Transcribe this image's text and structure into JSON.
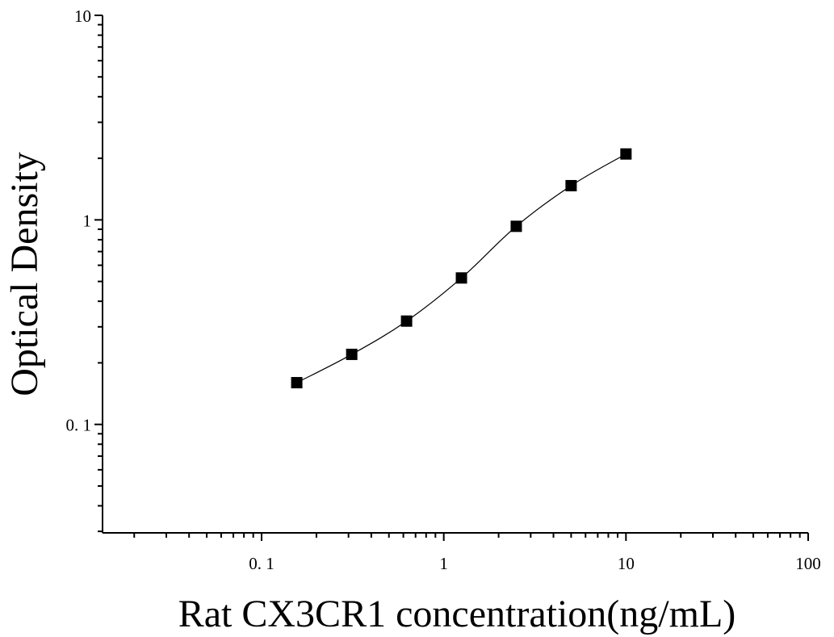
{
  "chart_data": {
    "type": "scatter",
    "title": "",
    "xlabel": "Rat CX3CR1 concentration(ng/mL)",
    "ylabel": "Optical Density",
    "xscale": "log",
    "yscale": "log",
    "xlim": [
      0.0134,
      100
    ],
    "ylim": [
      0.0295,
      10
    ],
    "xticks": [
      {
        "value": 0.1,
        "label": "0. 1"
      },
      {
        "value": 1,
        "label": "1"
      },
      {
        "value": 10,
        "label": "10"
      },
      {
        "value": 100,
        "label": "100"
      }
    ],
    "yticks": [
      {
        "value": 0.1,
        "label": "0. 1"
      },
      {
        "value": 1,
        "label": "1"
      },
      {
        "value": 10,
        "label": "10"
      }
    ],
    "grid": false,
    "legend": "none",
    "marker": "square",
    "marker_color": "#000000",
    "line_color": "#000000",
    "fit": "smooth curve through points",
    "series": [
      {
        "x": [
          0.156,
          0.3125,
          0.625,
          1.25,
          2.5,
          5,
          10
        ],
        "y": [
          0.16,
          0.22,
          0.32,
          0.52,
          0.93,
          1.47,
          2.1
        ]
      }
    ]
  }
}
